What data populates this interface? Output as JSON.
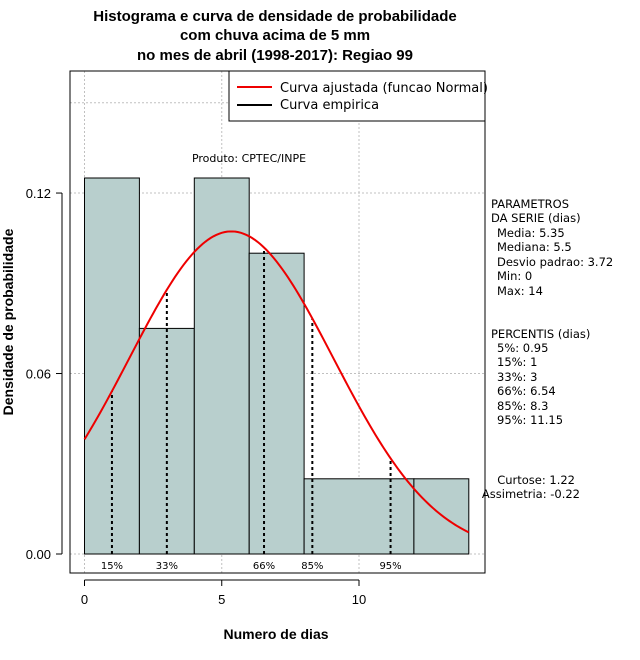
{
  "title_lines": [
    "Histograma e curva de densidade de probabilidade",
    "com chuva acima de 5 mm",
    "no mes de abril (1998-2017): Regiao 99"
  ],
  "credit": "Produto: CPTEC/INPE",
  "legend": {
    "fitted": "Curva ajustada (funcao Normal)",
    "empirical": "Curva empirica"
  },
  "parameters": {
    "title_lines": [
      "PARAMETROS",
      "DA SERIE (dias)"
    ],
    "lines": [
      "Media: 5.35",
      "Mediana: 5.5",
      "Desvio padrao: 3.72",
      "Min: 0",
      "Max: 14"
    ]
  },
  "percentiles": {
    "title": "PERCENTIS (dias)",
    "lines": [
      "5%: 0.95",
      "15%: 1",
      "33%: 3",
      "66%: 6.54",
      "85%: 8.3",
      "95%: 11.15"
    ]
  },
  "shape": {
    "lines": [
      "Curtose: 1.22",
      "Assimetria: -0.22"
    ]
  },
  "chart_data": {
    "type": "bar",
    "title": "Histograma e curva de densidade de probabilidade com chuva acima de 5 mm no mes de abril (1998-2017): Regiao 99",
    "xlabel": "Numero de dias",
    "ylabel": "Densidade de probabilidade",
    "xlim": [
      -0.5,
      14.5
    ],
    "ylim": [
      0,
      0.16
    ],
    "x_ticks": [
      0,
      5,
      10
    ],
    "y_ticks": [
      0.0,
      0.06,
      0.12
    ],
    "y_tick_labels": [
      "0.00",
      "0.06",
      "0.12"
    ],
    "bins": [
      {
        "start": 0,
        "end": 2,
        "density": 0.125
      },
      {
        "start": 2,
        "end": 4,
        "density": 0.075
      },
      {
        "start": 4,
        "end": 6,
        "density": 0.125
      },
      {
        "start": 6,
        "end": 8,
        "density": 0.1
      },
      {
        "start": 8,
        "end": 12,
        "density": 0.025
      },
      {
        "start": 12,
        "end": 14,
        "density": 0.025
      }
    ],
    "normal_fit": {
      "mean": 5.35,
      "sd": 3.72,
      "x_range": [
        0,
        14
      ]
    },
    "percentile_markers": [
      {
        "label": "15%",
        "x": 1
      },
      {
        "label": "33%",
        "x": 3
      },
      {
        "label": "66%",
        "x": 6.54
      },
      {
        "label": "85%",
        "x": 8.3
      },
      {
        "label": "95%",
        "x": 11.15
      }
    ],
    "grid": true,
    "legend_position": "top-right",
    "colors": {
      "bars": "#b8cfcd",
      "fit_curve": "#ee0000",
      "empirical_curve": "#000000",
      "grid": "#c0c0c0"
    }
  }
}
